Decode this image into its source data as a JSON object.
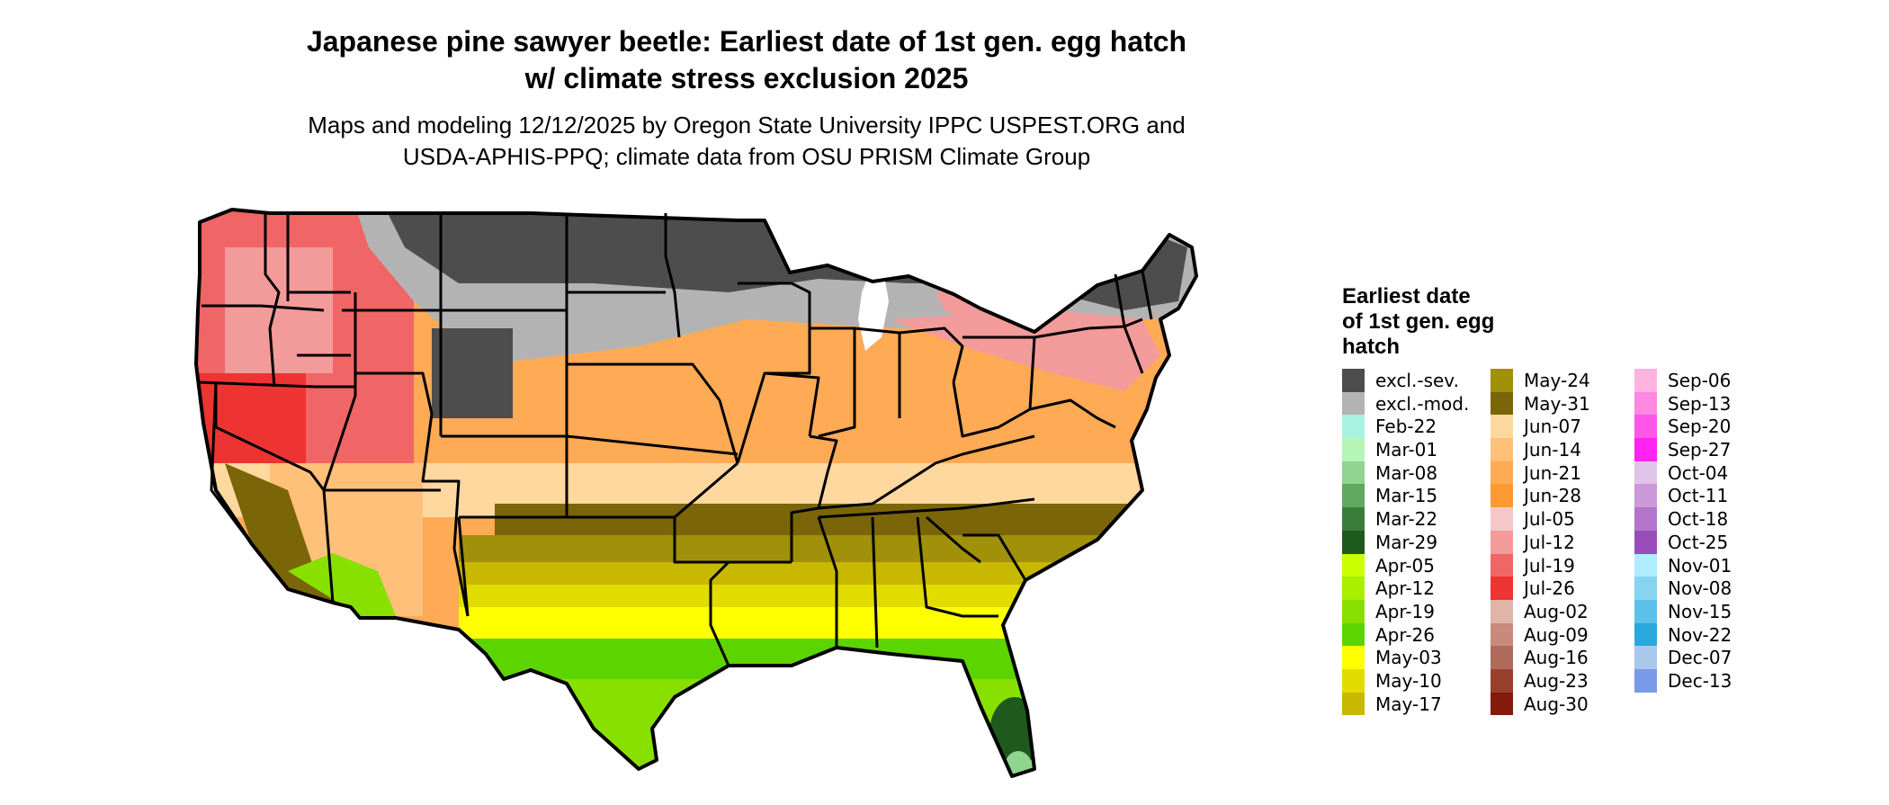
{
  "header": {
    "title_line1": "Japanese pine sawyer beetle: Earliest date of 1st gen. egg hatch",
    "title_line2": "w/ climate stress exclusion 2025",
    "subtitle_line1": "Maps and modeling 12/12/2025 by Oregon State University IPPC USPEST.ORG and",
    "subtitle_line2": "USDA-APHIS-PPQ; climate data from OSU PRISM Climate Group"
  },
  "legend": {
    "title_line1": "Earliest date",
    "title_line2": "of 1st gen. egg",
    "title_line3": "hatch",
    "columns": [
      [
        {
          "label": "excl.-sev.",
          "color": "#4d4d4d"
        },
        {
          "label": "excl.-mod.",
          "color": "#b3b3b3"
        },
        {
          "label": "Feb-22",
          "color": "#a8f2e0"
        },
        {
          "label": "Mar-01",
          "color": "#b5f5b8"
        },
        {
          "label": "Mar-08",
          "color": "#8fd48f"
        },
        {
          "label": "Mar-15",
          "color": "#5fa85f"
        },
        {
          "label": "Mar-22",
          "color": "#3a7d3a"
        },
        {
          "label": "Mar-29",
          "color": "#1e5a1e"
        },
        {
          "label": "Apr-05",
          "color": "#ccff00"
        },
        {
          "label": "Apr-12",
          "color": "#aaee00"
        },
        {
          "label": "Apr-19",
          "color": "#88e000"
        },
        {
          "label": "Apr-26",
          "color": "#5cd400"
        },
        {
          "label": "May-03",
          "color": "#ffff00"
        },
        {
          "label": "May-10",
          "color": "#e2dc00"
        },
        {
          "label": "May-17",
          "color": "#c8b800"
        }
      ],
      [
        {
          "label": "May-24",
          "color": "#a0900a"
        },
        {
          "label": "May-31",
          "color": "#7a6608"
        },
        {
          "label": "Jun-07",
          "color": "#ffd8a0"
        },
        {
          "label": "Jun-14",
          "color": "#ffc07a"
        },
        {
          "label": "Jun-21",
          "color": "#ffaa55"
        },
        {
          "label": "Jun-28",
          "color": "#ff9933"
        },
        {
          "label": "Jul-05",
          "color": "#f5c8c8"
        },
        {
          "label": "Jul-12",
          "color": "#f39a9a"
        },
        {
          "label": "Jul-19",
          "color": "#f06666"
        },
        {
          "label": "Jul-26",
          "color": "#ee3333"
        },
        {
          "label": "Aug-02",
          "color": "#e0b4a8"
        },
        {
          "label": "Aug-09",
          "color": "#c88a7c"
        },
        {
          "label": "Aug-16",
          "color": "#b06a5c"
        },
        {
          "label": "Aug-23",
          "color": "#98402e"
        },
        {
          "label": "Aug-30",
          "color": "#841b0a"
        }
      ],
      [
        {
          "label": "Sep-06",
          "color": "#ffb3e0"
        },
        {
          "label": "Sep-13",
          "color": "#ff88e0"
        },
        {
          "label": "Sep-20",
          "color": "#ff55e8"
        },
        {
          "label": "Sep-27",
          "color": "#ff22f0"
        },
        {
          "label": "Oct-04",
          "color": "#e0c4e8"
        },
        {
          "label": "Oct-11",
          "color": "#cc99d8"
        },
        {
          "label": "Oct-18",
          "color": "#b375cc"
        },
        {
          "label": "Oct-25",
          "color": "#9a4db8"
        },
        {
          "label": "Nov-01",
          "color": "#b0ecff"
        },
        {
          "label": "Nov-08",
          "color": "#88d4f0"
        },
        {
          "label": "Nov-15",
          "color": "#5cc0e8"
        },
        {
          "label": "Nov-22",
          "color": "#2aa8dc"
        },
        {
          "label": "Dec-07",
          "color": "#a8c8ec"
        },
        {
          "label": "Dec-13",
          "color": "#7a9ae8"
        }
      ]
    ]
  }
}
